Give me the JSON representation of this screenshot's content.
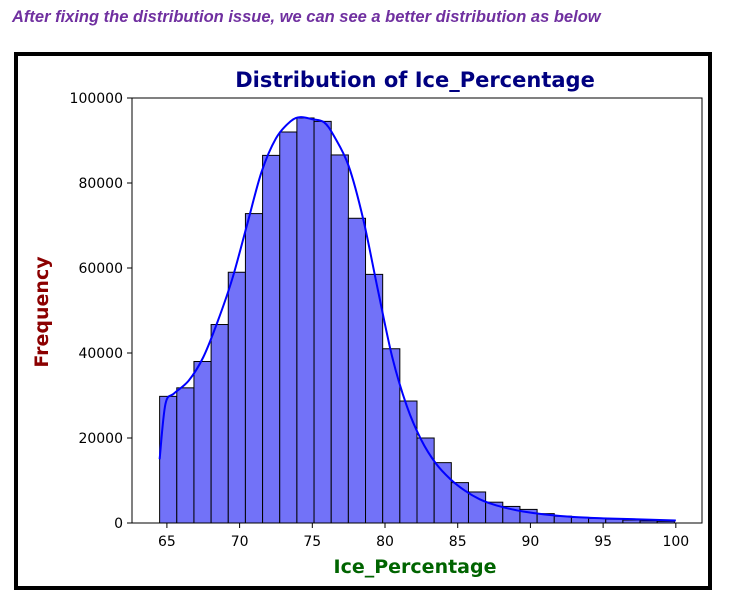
{
  "caption": "After fixing the distribution issue, we can see a better distribution as below",
  "chart_data": {
    "type": "bar",
    "title": "Distribution of Ice_Percentage",
    "xlabel": "Ice_Percentage",
    "ylabel": "Frequency",
    "xlim": [
      62.6,
      101.8
    ],
    "ylim": [
      0,
      100000
    ],
    "xticks": [
      65,
      70,
      75,
      80,
      85,
      90,
      95,
      100
    ],
    "yticks": [
      0,
      20000,
      40000,
      60000,
      80000,
      100000
    ],
    "bin_start": 64.5,
    "bin_width": 1.18,
    "values": [
      29800,
      31800,
      38000,
      46700,
      59000,
      72800,
      86500,
      92000,
      95300,
      94500,
      86600,
      71700,
      58500,
      41000,
      28700,
      20000,
      14200,
      9500,
      7300,
      4900,
      3900,
      3200,
      2200,
      1600,
      1300,
      1100,
      900,
      700,
      500,
      400
    ],
    "kde": {
      "x": [
        64.5,
        64.9,
        65.5,
        66.5,
        67.5,
        68.5,
        69.5,
        70.5,
        71.5,
        72.5,
        73.5,
        74.2,
        75.0,
        75.8,
        76.5,
        77.5,
        78.5,
        79.5,
        80.5,
        81.5,
        82.5,
        83.5,
        84.5,
        85.5,
        86.5,
        87.5,
        88.5,
        89.5,
        91,
        93,
        95,
        97,
        100
      ],
      "y": [
        15000,
        28000,
        30500,
        33500,
        39000,
        47500,
        57500,
        70000,
        82500,
        90500,
        94500,
        95500,
        95000,
        94300,
        91000,
        84000,
        71500,
        55000,
        39000,
        27500,
        19500,
        14000,
        10300,
        7600,
        5600,
        4300,
        3400,
        2700,
        2000,
        1400,
        1100,
        900,
        600
      ]
    },
    "bar_color": "#7272f8",
    "bar_edge_color": "#000000",
    "kde_color": "#0000ff",
    "title_color": "#000080",
    "xlabel_color": "#006400",
    "ylabel_color": "#8b0000",
    "grid": false,
    "legend": "none"
  }
}
